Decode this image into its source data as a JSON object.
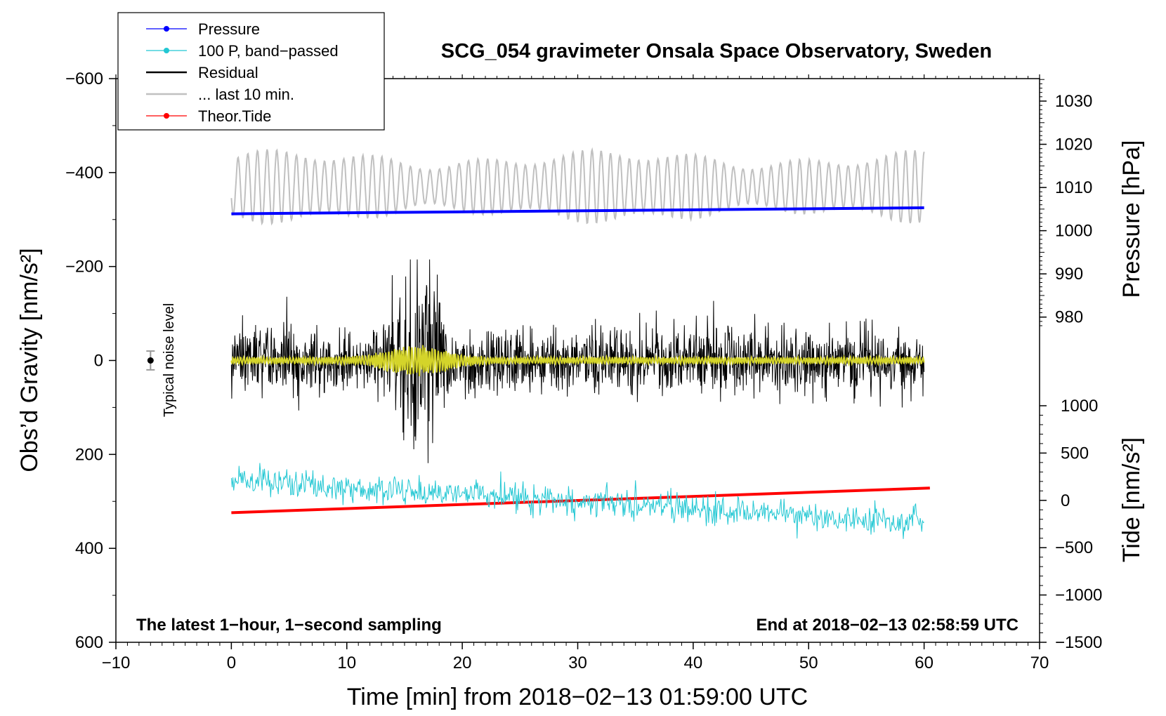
{
  "chart_data": {
    "type": "line",
    "title": "SCG_054 gravimeter Onsala Space Observatory, Sweden",
    "xlabel": "Time [min] from 2018−02−13 01:59:00 UTC",
    "ylabel_left": "Obs’d Gravity [nm/s²]",
    "ylabel_pressure": "Pressure [hPa]",
    "ylabel_tide": "Tide [nm/s²]",
    "xlim": [
      -10,
      70
    ],
    "ylim_left": [
      -600,
      600
    ],
    "pressure_range": [
      1035,
      975
    ],
    "tide_range": [
      -1500,
      1500
    ],
    "x_ticks": [
      -10,
      0,
      10,
      20,
      30,
      40,
      50,
      60,
      70
    ],
    "x_tick_labels": [
      "−10",
      "0",
      "10",
      "20",
      "30",
      "40",
      "50",
      "60",
      "70"
    ],
    "y_left_ticks": [
      600,
      400,
      200,
      0,
      -200,
      -400,
      -600
    ],
    "y_left_tick_labels": [
      "600",
      "400",
      "200",
      "0",
      "−200",
      "−400",
      "−600"
    ],
    "y_pressure_ticks": [
      1030,
      1020,
      1010,
      1000,
      990,
      980
    ],
    "y_pressure_tick_labels": [
      "1030",
      "1020",
      "1010",
      "1000",
      "990",
      "980"
    ],
    "y_tide_ticks": [
      1000,
      500,
      0,
      -500,
      -1000,
      -1500
    ],
    "y_tide_tick_labels": [
      "1000",
      "500",
      "0",
      "−500",
      "−1000",
      "−1500"
    ],
    "legend": [
      {
        "label": "Pressure",
        "color": "#0000ff",
        "marker": true
      },
      {
        "label": "100 P, band−passed",
        "color": "#22c7d3",
        "marker": true
      },
      {
        "label": "Residual",
        "color": "#000000",
        "marker": false
      },
      {
        "label": "... last 10 min.",
        "color": "#c0c0c0",
        "marker": false
      },
      {
        "label": "Theor.Tide",
        "color": "#ff0000",
        "marker": true
      }
    ],
    "legend_position": "top-left",
    "annotations": {
      "bottom_left": "The latest 1−hour, 1−second sampling",
      "bottom_right": "End at 2018−02−13 02:58:59 UTC",
      "noise_label": "Typical noise level"
    },
    "noise_marker": {
      "x": -7,
      "y": 0,
      "err": 20
    },
    "series": [
      {
        "name": "Pressure",
        "axis": "pressure",
        "color": "#0000ff",
        "x": [
          0,
          60
        ],
        "y": [
          1003.9,
          1005.3
        ]
      },
      {
        "name": "100 P, band−passed",
        "axis": "left",
        "color": "#22c7d3",
        "x_range": [
          0,
          60
        ],
        "trend": [
          255,
          345
        ],
        "amplitude": 22
      },
      {
        "name": "Residual",
        "axis": "left",
        "color": "#000000",
        "x_range": [
          0,
          60
        ],
        "baseline": 0,
        "amplitude": 45,
        "peak_at": 16,
        "peak_amplitude": 220
      },
      {
        "name": "Residual smoothed",
        "axis": "left",
        "color": "#d4d42a",
        "x_range": [
          0,
          60
        ],
        "baseline": 0,
        "amplitude": 8,
        "peak_at": 16,
        "peak_amplitude": 35
      },
      {
        "name": "... last 10 min.",
        "axis": "left",
        "color": "#c0c0c0",
        "x_range": [
          0,
          60
        ],
        "baseline": -370,
        "amplitude": 50
      },
      {
        "name": "Theor.Tide",
        "axis": "tide",
        "color": "#ff0000",
        "x": [
          0,
          60.5
        ],
        "y": [
          -130,
          130
        ]
      }
    ]
  }
}
